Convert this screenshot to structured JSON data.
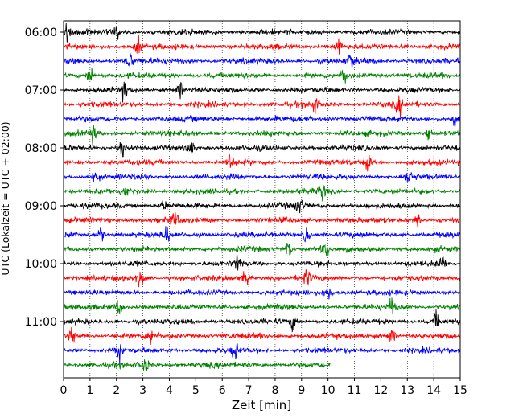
{
  "chart_data": {
    "type": "line",
    "title": "",
    "xlabel": "Zeit  [min]",
    "ylabel": "UTC (Lokalzeit = UTC + 02:00)",
    "xlim": [
      0,
      15
    ],
    "x_ticks": [
      "0",
      "1",
      "2",
      "3",
      "4",
      "5",
      "6",
      "7",
      "8",
      "9",
      "10",
      "11",
      "12",
      "13",
      "14",
      "15"
    ],
    "y_ticks": [
      "06:00",
      "07:00",
      "08:00",
      "09:00",
      "10:00",
      "11:00"
    ],
    "grid": "vertical dotted",
    "trace_colors": [
      "#000000",
      "#ff0000",
      "#0000ff",
      "#008000"
    ],
    "traces": [
      {
        "start": "06:00",
        "end_min": 15,
        "color": "#000000",
        "events": [
          0.15,
          2.0
        ]
      },
      {
        "start": "06:15",
        "end_min": 15,
        "color": "#ff0000",
        "events": [
          2.8,
          10.4
        ]
      },
      {
        "start": "06:30",
        "end_min": 15,
        "color": "#0000ff",
        "events": [
          2.5,
          10.9
        ]
      },
      {
        "start": "06:45",
        "end_min": 15,
        "color": "#008000",
        "events": [
          1.0,
          10.6
        ]
      },
      {
        "start": "07:00",
        "end_min": 15,
        "color": "#000000",
        "events": [
          2.3,
          4.4
        ]
      },
      {
        "start": "07:15",
        "end_min": 15,
        "color": "#ff0000",
        "events": [
          9.5,
          12.7
        ]
      },
      {
        "start": "07:30",
        "end_min": 15,
        "color": "#0000ff",
        "events": [
          14.8
        ]
      },
      {
        "start": "07:45",
        "end_min": 15,
        "color": "#008000",
        "events": [
          1.1,
          13.8
        ]
      },
      {
        "start": "08:00",
        "end_min": 15,
        "color": "#000000",
        "events": [
          2.2,
          4.8
        ]
      },
      {
        "start": "08:15",
        "end_min": 15,
        "color": "#ff0000",
        "events": [
          6.3,
          11.5
        ]
      },
      {
        "start": "08:30",
        "end_min": 15,
        "color": "#0000ff",
        "events": [
          1.2,
          13.1
        ]
      },
      {
        "start": "08:45",
        "end_min": 15,
        "color": "#008000",
        "events": [
          2.3,
          9.8
        ]
      },
      {
        "start": "09:00",
        "end_min": 15,
        "color": "#000000",
        "events": [
          3.8,
          8.9
        ]
      },
      {
        "start": "09:15",
        "end_min": 15,
        "color": "#ff0000",
        "events": [
          4.2,
          13.4
        ]
      },
      {
        "start": "09:30",
        "end_min": 15,
        "color": "#0000ff",
        "events": [
          1.4,
          3.9,
          9.2
        ]
      },
      {
        "start": "09:45",
        "end_min": 15,
        "color": "#008000",
        "events": [
          8.5,
          9.9
        ]
      },
      {
        "start": "10:00",
        "end_min": 15,
        "color": "#000000",
        "events": [
          6.6,
          14.3
        ]
      },
      {
        "start": "10:15",
        "end_min": 15,
        "color": "#ff0000",
        "events": [
          2.9,
          6.9,
          9.2
        ]
      },
      {
        "start": "10:30",
        "end_min": 15,
        "color": "#0000ff",
        "events": [
          10.0
        ]
      },
      {
        "start": "10:45",
        "end_min": 15,
        "color": "#008000",
        "events": [
          2.1,
          12.4
        ]
      },
      {
        "start": "11:00",
        "end_min": 15,
        "color": "#000000",
        "events": [
          8.7,
          14.1
        ]
      },
      {
        "start": "11:15",
        "end_min": 15,
        "color": "#ff0000",
        "events": [
          0.3,
          3.3,
          12.4
        ]
      },
      {
        "start": "11:30",
        "end_min": 15,
        "color": "#0000ff",
        "events": [
          2.1,
          6.5
        ]
      },
      {
        "start": "11:45",
        "end_min": 10.1,
        "color": "#008000",
        "events": [
          3.1
        ]
      }
    ]
  }
}
